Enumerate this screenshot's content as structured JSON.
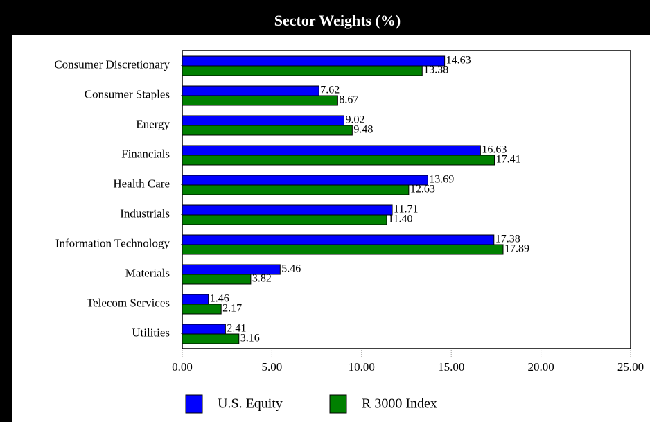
{
  "chart_data": {
    "type": "hbar",
    "title": "Sector Weights (%)",
    "categories": [
      "Consumer Discretionary",
      "Consumer Staples",
      "Energy",
      "Financials",
      "Health Care",
      "Industrials",
      "Information Technology",
      "Materials",
      "Telecom Services",
      "Utilities"
    ],
    "series": [
      {
        "name": "U.S. Equity",
        "color": "#0000ff",
        "values": [
          14.63,
          7.62,
          9.02,
          16.63,
          13.69,
          11.71,
          17.38,
          5.46,
          1.46,
          2.41
        ],
        "value_labels": [
          "14.63",
          "7.62",
          "9.02",
          "16.63",
          "13.69",
          "11.71",
          "17.38",
          "5.46",
          "1.46",
          "2.41"
        ]
      },
      {
        "name": "R 3000 Index",
        "color": "#008000",
        "values": [
          13.38,
          8.67,
          9.48,
          17.41,
          12.63,
          11.4,
          17.89,
          3.82,
          2.17,
          3.16
        ],
        "value_labels": [
          "13.38",
          "8.67",
          "9.48",
          "17.41",
          "12.63",
          "11.40",
          "17.89",
          "3.82",
          "2.17",
          "3.16"
        ]
      }
    ],
    "xlim": [
      0,
      25
    ],
    "xticks": [
      {
        "value": 0,
        "label": "0.00"
      },
      {
        "value": 5,
        "label": "5.00"
      },
      {
        "value": 10,
        "label": "10.00"
      },
      {
        "value": 15,
        "label": "15.00"
      },
      {
        "value": 20,
        "label": "20.00"
      },
      {
        "value": 25,
        "label": "25.00"
      }
    ]
  }
}
